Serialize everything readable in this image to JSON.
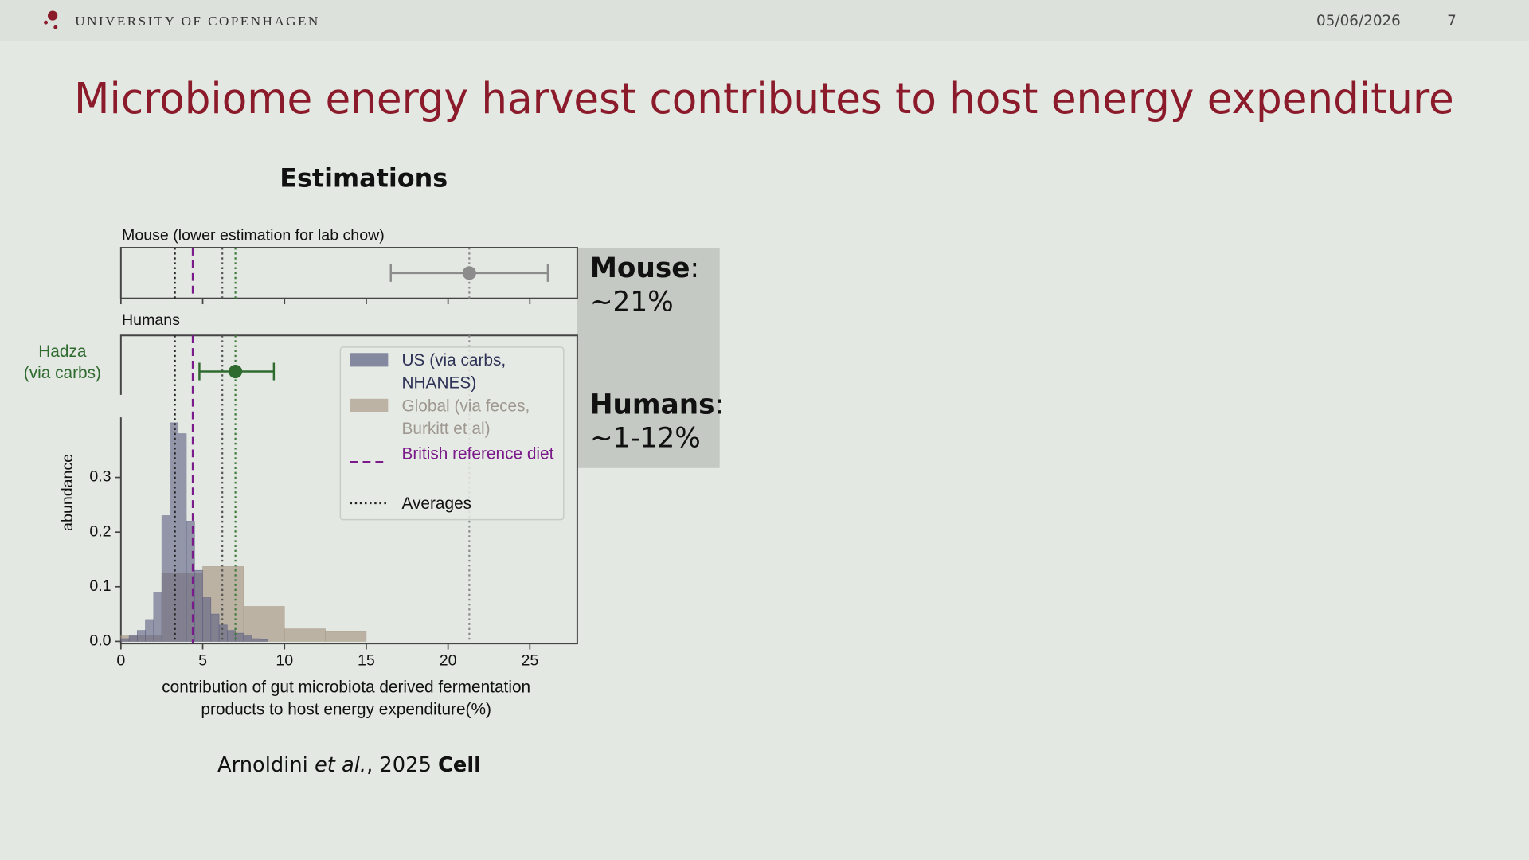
{
  "header": {
    "university": "UNIVERSITY OF COPENHAGEN",
    "date": "05/06/2026",
    "page": "7"
  },
  "title": "Microbiome energy harvest contributes to host energy expenditure",
  "subtitle": "Estimations",
  "chart_data": {
    "type": "histogram",
    "xlabel": "contribution of gut microbiota derived fermentation\nproducts to host energy expenditure(%)",
    "ylabel": "abundance",
    "xlim": [
      0,
      27.9
    ],
    "xticks": [
      0,
      5,
      10,
      15,
      20,
      25
    ],
    "ylim": [
      -0.004,
      0.41
    ],
    "yticks": [
      {
        "value": 0,
        "label": "0.0"
      },
      0.1,
      0.2,
      0.3
    ],
    "series": [
      {
        "name": "Global (via feces,\nBurkitt et al)",
        "color": "#a99b89",
        "bins": [
          0,
          2.5,
          5,
          7.5,
          10,
          12.5,
          15
        ],
        "values": [
          0.01,
          0.125,
          0.137,
          0.064,
          0.023,
          0.018
        ]
      },
      {
        "name": "US (via carbs,\nNHANES)",
        "color": "#5b5f82",
        "bins": [
          0,
          0.5,
          1,
          1.5,
          2,
          2.5,
          3,
          3.5,
          4,
          4.5,
          5,
          5.5,
          6,
          6.5,
          7,
          7.5,
          8,
          8.5,
          9
        ],
        "values": [
          0.005,
          0.01,
          0.02,
          0.04,
          0.09,
          0.23,
          0.4,
          0.38,
          0.22,
          0.13,
          0.08,
          0.05,
          0.03,
          0.02,
          0.015,
          0.01,
          0.005,
          0.003
        ]
      }
    ],
    "reference_lines": [
      {
        "name": "British reference diet",
        "style": "dashed",
        "color": "#7b1a8a",
        "x": [
          4.4
        ]
      },
      {
        "name": "Averages",
        "style": "dotted",
        "color": "#222222",
        "x": [
          3.3,
          6.2,
          7.0,
          21.3
        ],
        "colors": [
          "#222222",
          "#555555",
          "#3e7a3a",
          "#8a8a8a"
        ]
      }
    ],
    "panels": [
      {
        "label": "Mouse (lower estimation for lab chow)",
        "point": {
          "x": 21.3,
          "low": 16.5,
          "high": 26.1,
          "color": "#8c8c8c"
        }
      },
      {
        "label": "Humans",
        "point": {
          "name": "Hadza\n(via carbs)",
          "x": 7.0,
          "low": 4.8,
          "high": 9.35,
          "color": "#2f6a2f"
        }
      }
    ]
  },
  "summary": [
    {
      "label": "Mouse",
      "sep": ":",
      "value": "~21%"
    },
    {
      "label": "Humans",
      "sep": ":",
      "value": "~1-12%"
    }
  ],
  "citation": {
    "authors": "Arnoldini",
    "etal": "et al.",
    "year": ", 2025",
    "journal": "Cell"
  }
}
